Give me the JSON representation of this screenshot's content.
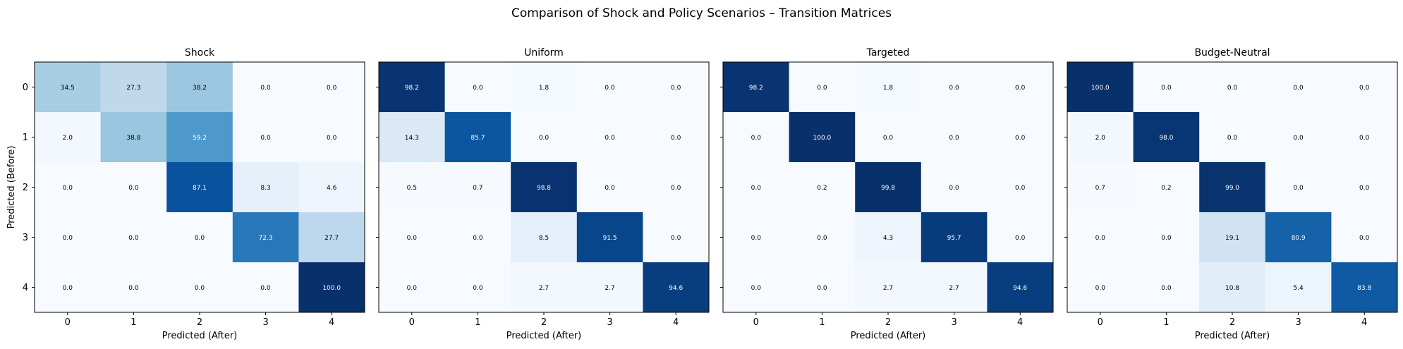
{
  "chart_data": {
    "type": "heatmap",
    "suptitle": "Comparison of Shock and Policy Scenarios – Transition Matrices",
    "colormap": "Blues",
    "value_range": [
      0,
      100
    ],
    "categories": [
      "0",
      "1",
      "2",
      "3",
      "4"
    ],
    "ylabel": "Predicted (Before)",
    "panels": [
      {
        "title": "Shock",
        "xlabel": "Predicted (After)",
        "matrix": [
          [
            "34.5",
            "27.3",
            "38.2",
            "0.0",
            "0.0"
          ],
          [
            "2.0",
            "38.8",
            "59.2",
            "0.0",
            "0.0"
          ],
          [
            "0.0",
            "0.0",
            "87.1",
            "8.3",
            "4.6"
          ],
          [
            "0.0",
            "0.0",
            "0.0",
            "72.3",
            "27.7"
          ],
          [
            "0.0",
            "0.0",
            "0.0",
            "0.0",
            "100.0"
          ]
        ]
      },
      {
        "title": "Uniform",
        "xlabel": "Predicted (After)",
        "matrix": [
          [
            "98.2",
            "0.0",
            "1.8",
            "0.0",
            "0.0"
          ],
          [
            "14.3",
            "85.7",
            "0.0",
            "0.0",
            "0.0"
          ],
          [
            "0.5",
            "0.7",
            "98.8",
            "0.0",
            "0.0"
          ],
          [
            "0.0",
            "0.0",
            "8.5",
            "91.5",
            "0.0"
          ],
          [
            "0.0",
            "0.0",
            "2.7",
            "2.7",
            "94.6"
          ]
        ]
      },
      {
        "title": "Targeted",
        "xlabel": "Predicted (After)",
        "matrix": [
          [
            "98.2",
            "0.0",
            "1.8",
            "0.0",
            "0.0"
          ],
          [
            "0.0",
            "100.0",
            "0.0",
            "0.0",
            "0.0"
          ],
          [
            "0.0",
            "0.2",
            "99.8",
            "0.0",
            "0.0"
          ],
          [
            "0.0",
            "0.0",
            "4.3",
            "95.7",
            "0.0"
          ],
          [
            "0.0",
            "0.0",
            "2.7",
            "2.7",
            "94.6"
          ]
        ]
      },
      {
        "title": "Budget-Neutral",
        "xlabel": "Predicted (After)",
        "matrix": [
          [
            "100.0",
            "0.0",
            "0.0",
            "0.0",
            "0.0"
          ],
          [
            "2.0",
            "98.0",
            "0.0",
            "0.0",
            "0.0"
          ],
          [
            "0.7",
            "0.2",
            "99.0",
            "0.0",
            "0.0"
          ],
          [
            "0.0",
            "0.0",
            "19.1",
            "80.9",
            "0.0"
          ],
          [
            "0.0",
            "0.0",
            "10.8",
            "5.4",
            "83.8"
          ]
        ]
      }
    ]
  }
}
